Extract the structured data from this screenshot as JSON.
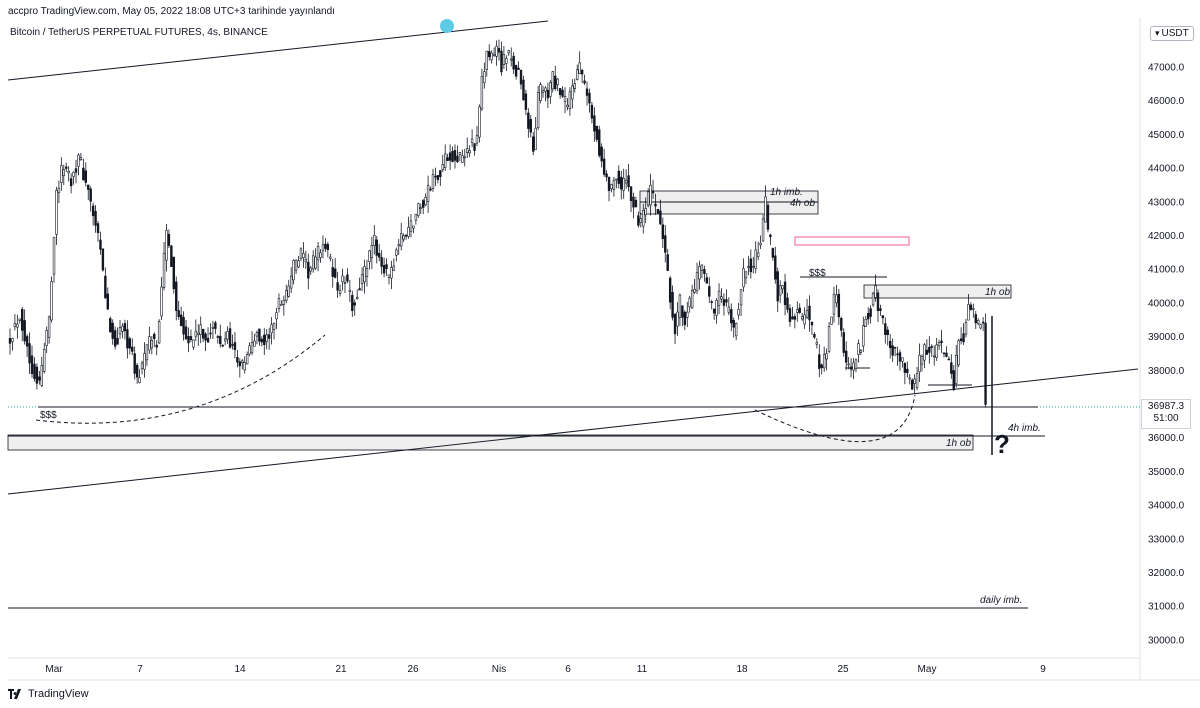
{
  "header": {
    "publish_line": "accpro TradingView.com, May 05, 2022 18:08 UTC+3 tarihinde yayınlandı",
    "symbol_line": "Bitcoin / TetherUS PERPETUAL FUTURES, 4s, BINANCE",
    "currency": "USDT"
  },
  "footer": {
    "brand": "TradingView"
  },
  "last_price": {
    "value": "36987.3",
    "countdown": "51:00"
  },
  "annotations": {
    "h1_imb_top": "1h imb.",
    "h4_ob_top": "4h ob",
    "sss_right": "$$$",
    "h1_ob_right": "1h ob",
    "sss_left": "$$$",
    "h4_imb_bottom": "4h imb.",
    "h1_ob_bottom": "1h ob",
    "daily_imb": "daily imb.",
    "question": "?"
  },
  "colors": {
    "candle": "#131722",
    "highlight": "#5ecbe6",
    "red_box": "#f06292",
    "dotted": "#26a69a"
  },
  "chart_data": {
    "type": "candlestick",
    "xlabels": [
      "Mar",
      "7",
      "14",
      "21",
      "26",
      "Nis",
      "6",
      "11",
      "18",
      "25",
      "May",
      "9"
    ],
    "y_ticks": [
      30000,
      31000,
      32000,
      33000,
      34000,
      35000,
      36000,
      37000,
      38000,
      39000,
      40000,
      41000,
      42000,
      43000,
      44000,
      45000,
      46000,
      47000
    ],
    "ylim": [
      29600,
      48300
    ],
    "close_path": [
      [
        0,
        39000
      ],
      [
        4,
        39700
      ],
      [
        8,
        38300
      ],
      [
        12,
        37600
      ],
      [
        13,
        38100
      ],
      [
        16,
        39600
      ],
      [
        19,
        43300
      ],
      [
        22,
        44100
      ],
      [
        25,
        43700
      ],
      [
        28,
        44300
      ],
      [
        31,
        43600
      ],
      [
        34,
        42600
      ],
      [
        37,
        41500
      ],
      [
        40,
        39600
      ],
      [
        43,
        38800
      ],
      [
        46,
        39300
      ],
      [
        49,
        38700
      ],
      [
        52,
        37700
      ],
      [
        55,
        38400
      ],
      [
        58,
        39000
      ],
      [
        60,
        38700
      ],
      [
        62,
        40600
      ],
      [
        64,
        42000
      ],
      [
        66,
        41300
      ],
      [
        68,
        39800
      ],
      [
        71,
        39300
      ],
      [
        74,
        38800
      ],
      [
        77,
        39200
      ],
      [
        80,
        38900
      ],
      [
        83,
        39300
      ],
      [
        86,
        38700
      ],
      [
        89,
        39100
      ],
      [
        92,
        38500
      ],
      [
        95,
        38100
      ],
      [
        98,
        38600
      ],
      [
        101,
        39100
      ],
      [
        104,
        38800
      ],
      [
        107,
        39200
      ],
      [
        110,
        40000
      ],
      [
        113,
        40300
      ],
      [
        116,
        41100
      ],
      [
        119,
        41400
      ],
      [
        122,
        40900
      ],
      [
        125,
        41300
      ],
      [
        128,
        41800
      ],
      [
        131,
        41200
      ],
      [
        134,
        40400
      ],
      [
        137,
        40700
      ],
      [
        140,
        39900
      ],
      [
        143,
        40500
      ],
      [
        146,
        41100
      ],
      [
        149,
        41800
      ],
      [
        152,
        41200
      ],
      [
        155,
        40600
      ],
      [
        158,
        41600
      ],
      [
        161,
        42000
      ],
      [
        164,
        42300
      ],
      [
        167,
        42800
      ],
      [
        170,
        43100
      ],
      [
        173,
        43700
      ],
      [
        176,
        43900
      ],
      [
        179,
        44400
      ],
      [
        182,
        44400
      ],
      [
        185,
        44200
      ],
      [
        188,
        44700
      ],
      [
        191,
        44800
      ],
      [
        193,
        46500
      ],
      [
        195,
        47400
      ],
      [
        197,
        47200
      ],
      [
        199,
        47600
      ],
      [
        201,
        47100
      ],
      [
        203,
        47300
      ],
      [
        205,
        47200
      ],
      [
        208,
        46800
      ],
      [
        210,
        46200
      ],
      [
        212,
        45300
      ],
      [
        214,
        44500
      ],
      [
        216,
        46100
      ],
      [
        218,
        46400
      ],
      [
        220,
        46100
      ],
      [
        222,
        46700
      ],
      [
        224,
        46400
      ],
      [
        226,
        46000
      ],
      [
        228,
        45800
      ],
      [
        230,
        46500
      ],
      [
        233,
        46900
      ],
      [
        236,
        46200
      ],
      [
        238,
        45500
      ],
      [
        240,
        45000
      ],
      [
        242,
        44200
      ],
      [
        244,
        43600
      ],
      [
        246,
        43400
      ],
      [
        248,
        43900
      ],
      [
        250,
        43300
      ],
      [
        252,
        43700
      ],
      [
        254,
        43200
      ],
      [
        256,
        42600
      ],
      [
        258,
        42300
      ],
      [
        260,
        42800
      ],
      [
        262,
        43300
      ],
      [
        264,
        42800
      ],
      [
        266,
        42400
      ],
      [
        268,
        41300
      ],
      [
        270,
        40200
      ],
      [
        272,
        39300
      ],
      [
        274,
        40000
      ],
      [
        276,
        39600
      ],
      [
        278,
        39900
      ],
      [
        280,
        40500
      ],
      [
        282,
        41000
      ],
      [
        284,
        40800
      ],
      [
        286,
        40000
      ],
      [
        288,
        39700
      ],
      [
        290,
        40100
      ],
      [
        292,
        40000
      ],
      [
        294,
        39700
      ],
      [
        296,
        39100
      ],
      [
        298,
        39900
      ],
      [
        300,
        40800
      ],
      [
        302,
        41200
      ],
      [
        304,
        41100
      ],
      [
        306,
        41600
      ],
      [
        308,
        42300
      ],
      [
        309,
        42900
      ],
      [
        310,
        42100
      ],
      [
        312,
        41400
      ],
      [
        314,
        40300
      ],
      [
        316,
        40500
      ],
      [
        318,
        39700
      ],
      [
        320,
        39500
      ],
      [
        322,
        39800
      ],
      [
        324,
        39500
      ],
      [
        326,
        39800
      ],
      [
        328,
        39200
      ],
      [
        330,
        38600
      ],
      [
        332,
        38000
      ],
      [
        334,
        38700
      ],
      [
        336,
        39800
      ],
      [
        338,
        40300
      ],
      [
        340,
        39000
      ],
      [
        342,
        38300
      ],
      [
        344,
        37900
      ],
      [
        346,
        38400
      ],
      [
        348,
        38800
      ],
      [
        350,
        39600
      ],
      [
        352,
        39800
      ],
      [
        354,
        40300
      ],
      [
        356,
        39600
      ],
      [
        358,
        39300
      ],
      [
        360,
        38700
      ],
      [
        362,
        38500
      ],
      [
        364,
        38300
      ],
      [
        366,
        38000
      ],
      [
        368,
        37700
      ],
      [
        370,
        37500
      ],
      [
        372,
        38300
      ],
      [
        374,
        38600
      ],
      [
        376,
        38700
      ],
      [
        378,
        38400
      ],
      [
        380,
        38800
      ],
      [
        382,
        38500
      ],
      [
        384,
        38100
      ],
      [
        386,
        37600
      ],
      [
        388,
        38900
      ],
      [
        390,
        39000
      ],
      [
        392,
        39900
      ],
      [
        394,
        39700
      ],
      [
        396,
        39300
      ],
      [
        398,
        39300
      ],
      [
        399,
        36987.3
      ]
    ]
  }
}
